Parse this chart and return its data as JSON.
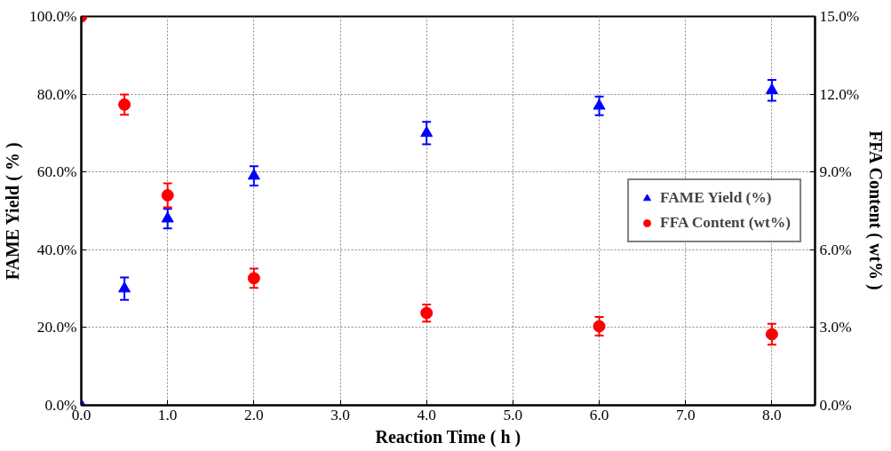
{
  "chart_data": {
    "type": "scatter",
    "xlabel": "Reaction Time ( h )",
    "ylabel": "FAME Yield ( % )",
    "y2label": "FFA Content ( wt% )",
    "xlim": [
      0,
      8.5
    ],
    "xticks": [
      {
        "value": 0,
        "label": "0.0"
      },
      {
        "value": 1,
        "label": "1.0"
      },
      {
        "value": 2,
        "label": "2.0"
      },
      {
        "value": 3,
        "label": "3.0"
      },
      {
        "value": 4,
        "label": "4.0"
      },
      {
        "value": 5,
        "label": "5.0"
      },
      {
        "value": 6,
        "label": "6.0"
      },
      {
        "value": 7,
        "label": "7.0"
      },
      {
        "value": 8,
        "label": "8.0"
      }
    ],
    "ylim": [
      0,
      100
    ],
    "yticks": [
      {
        "value": 0,
        "label": "0.0%"
      },
      {
        "value": 20,
        "label": "20.0%"
      },
      {
        "value": 40,
        "label": "40.0%"
      },
      {
        "value": 60,
        "label": "60.0%"
      },
      {
        "value": 80,
        "label": "80.0%"
      },
      {
        "value": 100,
        "label": "100.0%"
      }
    ],
    "y2lim": [
      0,
      15
    ],
    "y2ticks": [
      {
        "value": 0,
        "label": "0.0%"
      },
      {
        "value": 3,
        "label": "3.0%"
      },
      {
        "value": 6,
        "label": "6.0%"
      },
      {
        "value": 9,
        "label": "9.0%"
      },
      {
        "value": 12,
        "label": "12.0%"
      },
      {
        "value": 15,
        "label": "15.0%"
      }
    ],
    "grid": true,
    "legend": "right",
    "series": [
      {
        "name": "FAME Yield (%)",
        "color": "#0000ff",
        "marker": "triangle",
        "x": [
          0,
          0.5,
          1,
          2,
          4,
          6,
          8
        ],
        "values": [
          0,
          30,
          48,
          59,
          70,
          77,
          81
        ],
        "errors": [
          null,
          2.9,
          2.5,
          2.5,
          2.9,
          2.4,
          2.7
        ]
      },
      {
        "name": "FFA Content (wt%)",
        "color": "#ff0000",
        "marker": "circle",
        "axis": "y2",
        "x": [
          0,
          0.5,
          1,
          2,
          4,
          6,
          8
        ],
        "values": [
          15,
          11.6,
          8.1,
          4.9,
          3.56,
          3.05,
          2.74
        ],
        "errors": [
          null,
          0.39,
          0.46,
          0.37,
          0.33,
          0.36,
          0.4
        ]
      }
    ]
  }
}
